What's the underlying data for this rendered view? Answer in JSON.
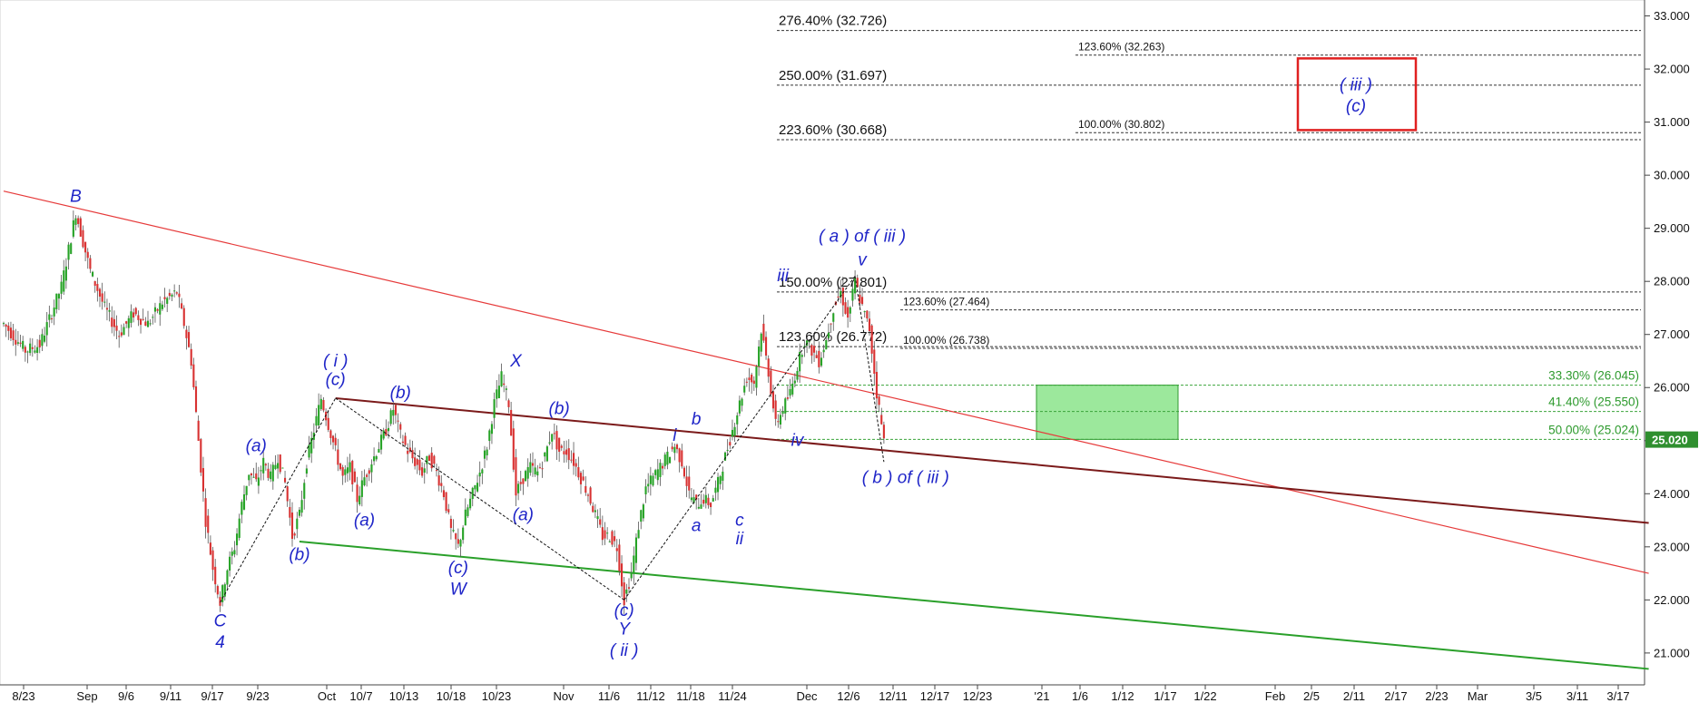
{
  "chart_data": {
    "type": "candlestick",
    "ylim": [
      20.4,
      33.3
    ],
    "x_ticks": [
      "8/23",
      "Sep",
      "9/6",
      "9/11",
      "9/17",
      "9/23",
      "Oct",
      "10/7",
      "10/13",
      "10/18",
      "10/23",
      "Nov",
      "11/6",
      "11/12",
      "11/18",
      "11/24",
      "Dec",
      "12/6",
      "12/11",
      "12/17",
      "12/23",
      "'21",
      "1/6",
      "1/12",
      "1/17",
      "1/22",
      "Feb",
      "2/5",
      "2/11",
      "2/17",
      "2/23",
      "Mar",
      "3/5",
      "3/11",
      "3/17"
    ],
    "y_ticks": [
      "21.000",
      "22.000",
      "23.000",
      "24.000",
      "25.000",
      "26.000",
      "27.000",
      "28.000",
      "29.000",
      "30.000",
      "31.000",
      "32.000",
      "33.000"
    ],
    "last_price": "25.020",
    "price_path": [
      [
        0,
        27.2
      ],
      [
        3,
        26.7
      ],
      [
        5,
        26.8
      ],
      [
        8,
        27.9
      ],
      [
        10,
        29.3
      ],
      [
        12,
        28.2
      ],
      [
        14,
        27.5
      ],
      [
        16,
        27.0
      ],
      [
        18,
        27.4
      ],
      [
        20,
        27.2
      ],
      [
        22,
        27.6
      ],
      [
        24,
        27.8
      ],
      [
        25,
        27.2
      ],
      [
        26,
        26.5
      ],
      [
        27,
        25.0
      ],
      [
        28,
        23.5
      ],
      [
        29,
        22.6
      ],
      [
        30,
        21.95
      ],
      [
        31,
        22.6
      ],
      [
        32,
        23.0
      ],
      [
        33,
        23.8
      ],
      [
        34,
        24.4
      ],
      [
        35,
        24.2
      ],
      [
        36,
        24.6
      ],
      [
        37,
        24.3
      ],
      [
        38,
        24.7
      ],
      [
        39,
        24.2
      ],
      [
        40,
        23.2
      ],
      [
        41,
        23.6
      ],
      [
        42,
        24.6
      ],
      [
        43,
        25.2
      ],
      [
        44,
        25.8
      ],
      [
        45,
        25.3
      ],
      [
        46,
        24.8
      ],
      [
        47,
        24.3
      ],
      [
        48,
        24.5
      ],
      [
        49,
        23.9
      ],
      [
        50,
        24.3
      ],
      [
        51,
        24.6
      ],
      [
        52,
        24.9
      ],
      [
        53,
        25.2
      ],
      [
        54,
        25.6
      ],
      [
        55,
        25.1
      ],
      [
        56,
        24.8
      ],
      [
        57,
        24.6
      ],
      [
        58,
        24.4
      ],
      [
        59,
        24.7
      ],
      [
        60,
        24.4
      ],
      [
        61,
        24.0
      ],
      [
        62,
        23.3
      ],
      [
        63,
        23.0
      ],
      [
        64,
        23.6
      ],
      [
        65,
        24.0
      ],
      [
        66,
        24.4
      ],
      [
        67,
        24.9
      ],
      [
        68,
        25.7
      ],
      [
        69,
        26.2
      ],
      [
        70,
        25.7
      ],
      [
        71,
        24.0
      ],
      [
        72,
        24.3
      ],
      [
        73,
        24.5
      ],
      [
        74,
        24.4
      ],
      [
        75,
        24.7
      ],
      [
        76,
        25.2
      ],
      [
        77,
        24.8
      ],
      [
        78,
        24.8
      ],
      [
        79,
        24.6
      ],
      [
        80,
        24.3
      ],
      [
        81,
        24.0
      ],
      [
        82,
        23.6
      ],
      [
        83,
        23.2
      ],
      [
        84,
        23.2
      ],
      [
        85,
        23.0
      ],
      [
        86,
        22.0
      ],
      [
        87,
        22.5
      ],
      [
        88,
        23.4
      ],
      [
        89,
        24.1
      ],
      [
        90,
        24.3
      ],
      [
        91,
        24.5
      ],
      [
        92,
        24.7
      ],
      [
        93,
        24.9
      ],
      [
        94,
        24.6
      ],
      [
        95,
        24.0
      ],
      [
        96,
        23.8
      ],
      [
        97,
        23.9
      ],
      [
        98,
        23.8
      ],
      [
        99,
        24.2
      ],
      [
        100,
        24.7
      ],
      [
        101,
        25.2
      ],
      [
        102,
        25.7
      ],
      [
        103,
        26.2
      ],
      [
        104,
        26.1
      ],
      [
        105,
        27.1
      ],
      [
        106,
        26.3
      ],
      [
        107,
        25.3
      ],
      [
        108,
        25.6
      ],
      [
        109,
        25.9
      ],
      [
        110,
        26.4
      ],
      [
        111,
        26.9
      ],
      [
        112,
        26.7
      ],
      [
        113,
        26.5
      ],
      [
        114,
        26.9
      ],
      [
        115,
        27.5
      ],
      [
        116,
        27.8
      ],
      [
        117,
        27.3
      ],
      [
        118,
        28.0
      ],
      [
        119,
        27.5
      ],
      [
        120,
        27.1
      ],
      [
        121,
        25.9
      ],
      [
        122,
        25.0
      ]
    ],
    "trendlines": [
      {
        "color": "#e63a3a",
        "from": [
          0,
          29.7
        ],
        "to": [
          228,
          22.5
        ]
      },
      {
        "color": "#7b1a1a",
        "from": [
          46,
          25.8
        ],
        "to": [
          228,
          23.45
        ]
      },
      {
        "color": "#2aa02a",
        "from": [
          41,
          23.1
        ],
        "to": [
          228,
          20.7
        ]
      }
    ],
    "wave_path_dashed": [
      [
        30,
        21.95
      ],
      [
        46,
        25.8
      ],
      [
        86,
        22.0
      ],
      [
        118,
        28.1
      ],
      [
        122,
        24.6
      ]
    ],
    "fib_levels_left": [
      {
        "label": "276.40% (32.726)",
        "value": 32.726
      },
      {
        "label": "250.00% (31.697)",
        "value": 31.697
      },
      {
        "label": "223.60% (30.668)",
        "value": 30.668
      },
      {
        "label": "150.00% (27.801)",
        "value": 27.801
      },
      {
        "label": "123.60% (26.772)",
        "value": 26.772
      }
    ],
    "fib_levels_right": [
      {
        "label": "123.60% (32.263)",
        "value": 32.263
      },
      {
        "label": "100.00% (30.802)",
        "value": 30.802
      },
      {
        "label": "123.60% (27.464)",
        "value": 27.464
      },
      {
        "label": "100.00% (26.738)",
        "value": 26.738
      }
    ],
    "retracements": [
      {
        "label": "33.30% (26.045)",
        "value": 26.045
      },
      {
        "label": "41.40% (25.550)",
        "value": 25.55
      },
      {
        "label": "50.00% (25.024)",
        "value": 25.024
      }
    ],
    "target_box_text": [
      "( iii )",
      "(c)"
    ],
    "wave_labels": [
      {
        "t": "B",
        "x": 10,
        "y": 29.5
      },
      {
        "t": "C",
        "x": 30,
        "y": 21.5
      },
      {
        "t": "4",
        "x": 30,
        "y": 21.1
      },
      {
        "t": "(a)",
        "x": 35,
        "y": 24.8
      },
      {
        "t": "( i )",
        "x": 46,
        "y": 26.4
      },
      {
        "t": "(c)",
        "x": 46,
        "y": 26.05
      },
      {
        "t": "(b)",
        "x": 41,
        "y": 22.75
      },
      {
        "t": "(a)",
        "x": 50,
        "y": 23.4
      },
      {
        "t": "(b)",
        "x": 55,
        "y": 25.8
      },
      {
        "t": "(c)",
        "x": 63,
        "y": 22.5
      },
      {
        "t": "W",
        "x": 63,
        "y": 22.1
      },
      {
        "t": "X",
        "x": 71,
        "y": 26.4
      },
      {
        "t": "(a)",
        "x": 72,
        "y": 23.5
      },
      {
        "t": "(b)",
        "x": 77,
        "y": 25.5
      },
      {
        "t": "(c)",
        "x": 86,
        "y": 21.7
      },
      {
        "t": "Y",
        "x": 86,
        "y": 21.35
      },
      {
        "t": "( ii )",
        "x": 86,
        "y": 20.95
      },
      {
        "t": "i",
        "x": 93,
        "y": 25.0
      },
      {
        "t": "b",
        "x": 96,
        "y": 25.3
      },
      {
        "t": "a",
        "x": 96,
        "y": 23.3
      },
      {
        "t": "c",
        "x": 102,
        "y": 23.4
      },
      {
        "t": "ii",
        "x": 102,
        "y": 23.05
      },
      {
        "t": "iii",
        "x": 108,
        "y": 28.0
      },
      {
        "t": "iv",
        "x": 110,
        "y": 24.9
      },
      {
        "t": "( a ) of ( iii )",
        "x": 119,
        "y": 28.75
      },
      {
        "t": "v",
        "x": 119,
        "y": 28.3
      },
      {
        "t": "( b ) of ( iii )",
        "x": 125,
        "y": 24.2
      }
    ]
  }
}
